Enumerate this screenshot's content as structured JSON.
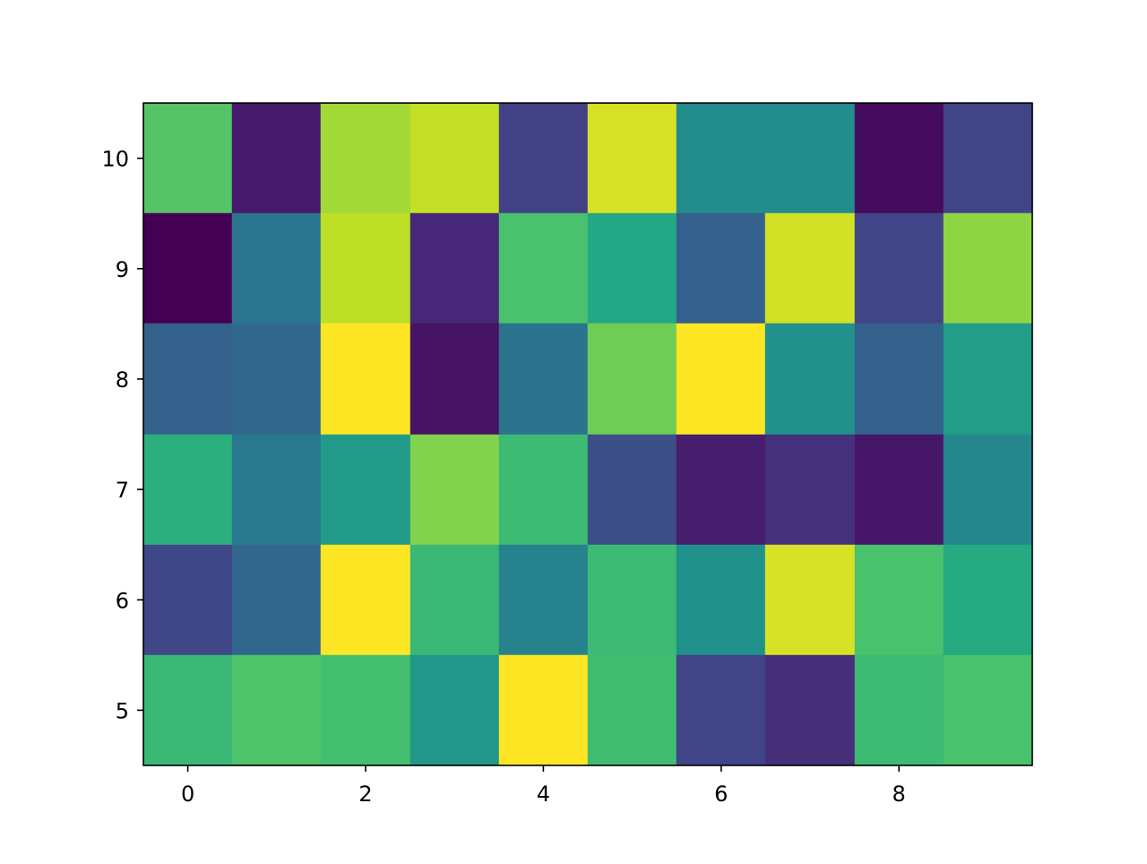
{
  "chart_data": {
    "type": "heatmap",
    "title": "",
    "xlabel": "",
    "ylabel": "",
    "colormap": "viridis",
    "value_range": [
      0,
      1
    ],
    "x": [
      0,
      1,
      2,
      3,
      4,
      5,
      6,
      7,
      8,
      9
    ],
    "y": [
      5,
      6,
      7,
      8,
      9,
      10
    ],
    "x_ticks": [
      0,
      2,
      4,
      6,
      8
    ],
    "y_ticks": [
      5,
      6,
      7,
      8,
      9,
      10
    ],
    "x_tick_labels": [
      "0",
      "2",
      "4",
      "6",
      "8"
    ],
    "y_tick_labels": [
      "5",
      "6",
      "7",
      "8",
      "9",
      "10"
    ],
    "xlim": [
      -0.5,
      9.5
    ],
    "ylim": [
      4.5,
      10.5
    ],
    "grid": false,
    "legend": "none",
    "rows": [
      {
        "y": 10,
        "values": [
          0.73,
          0.07,
          0.86,
          0.91,
          0.19,
          0.94,
          0.48,
          0.48,
          0.03,
          0.2
        ]
      },
      {
        "y": 9,
        "values": [
          0.0,
          0.39,
          0.9,
          0.11,
          0.71,
          0.6,
          0.3,
          0.93,
          0.2,
          0.83
        ]
      },
      {
        "y": 8,
        "values": [
          0.31,
          0.33,
          1.0,
          0.05,
          0.38,
          0.78,
          1.0,
          0.5,
          0.31,
          0.55
        ]
      },
      {
        "y": 7,
        "values": [
          0.63,
          0.4,
          0.54,
          0.81,
          0.68,
          0.24,
          0.08,
          0.14,
          0.06,
          0.46
        ]
      },
      {
        "y": 6,
        "values": [
          0.21,
          0.33,
          1.0,
          0.67,
          0.44,
          0.68,
          0.5,
          0.94,
          0.71,
          0.61
        ]
      },
      {
        "y": 5,
        "values": [
          0.67,
          0.72,
          0.7,
          0.53,
          1.0,
          0.69,
          0.2,
          0.13,
          0.68,
          0.71
        ]
      }
    ]
  }
}
